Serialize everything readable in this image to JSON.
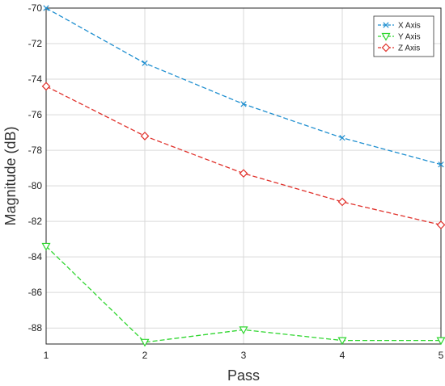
{
  "chart_data": {
    "type": "line",
    "title": "",
    "xlabel": "Pass",
    "ylabel": "Magnitude (dB)",
    "x": [
      1,
      2,
      3,
      4,
      5
    ],
    "xlim": [
      1,
      5
    ],
    "ylim": [
      -88.9,
      -70
    ],
    "xticks": [
      "1",
      "2",
      "3",
      "4",
      "5"
    ],
    "yticks": [
      -70,
      -72,
      -74,
      -76,
      -78,
      -80,
      -82,
      -84,
      -86,
      -88
    ],
    "grid": true,
    "legend_position": "top-right",
    "series": [
      {
        "name": "X Axis",
        "values": [
          -70.0,
          -73.1,
          -75.4,
          -77.3,
          -78.8
        ],
        "color": "#1f8fd0",
        "marker": "x"
      },
      {
        "name": "Y Axis",
        "values": [
          -83.4,
          -88.8,
          -88.1,
          -88.7,
          -88.7
        ],
        "color": "#2fd62f",
        "marker": "triangle-down"
      },
      {
        "name": "Z Axis",
        "values": [
          -74.4,
          -77.2,
          -79.3,
          -80.9,
          -82.2
        ],
        "color": "#e0302a",
        "marker": "diamond"
      }
    ]
  }
}
